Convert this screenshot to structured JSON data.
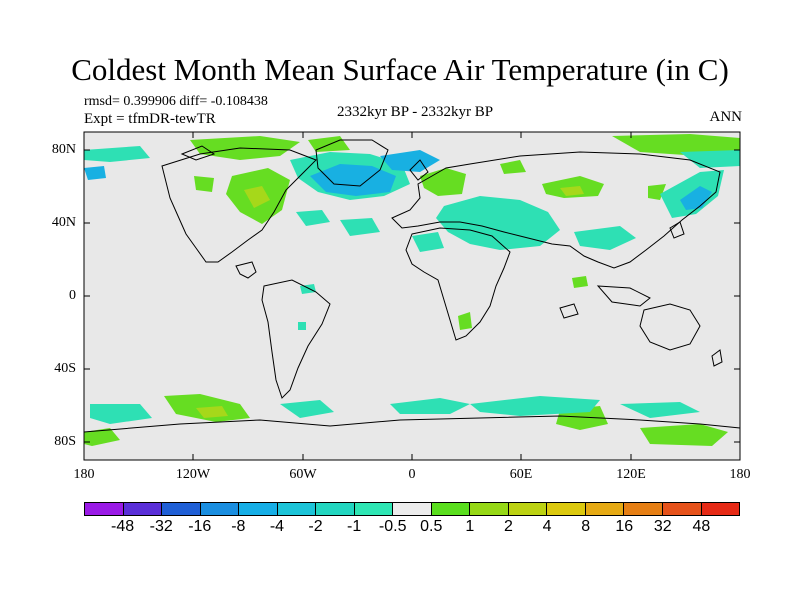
{
  "title": "Coldest Month Mean Surface Air Temperature (in C)",
  "stats": "rmsd= 0.399906 diff= -0.108438",
  "experiment": "Expt = tfmDR-tewTR",
  "period": "2332kyr BP - 2332kyr BP",
  "season": "ANN",
  "lat_labels": [
    "80N",
    "40N",
    "0",
    "40S",
    "80S"
  ],
  "lon_labels": [
    "180",
    "120W",
    "60W",
    "0",
    "60E",
    "120E",
    "180"
  ],
  "colorbar": {
    "colors": [
      "#9a1ae6",
      "#5a2fd8",
      "#1f5fd6",
      "#1a8ee0",
      "#16aee6",
      "#1cc4d8",
      "#22d6c0",
      "#2ee6b4",
      "#ececec",
      "#5ade1e",
      "#96d816",
      "#bcd212",
      "#dcc90f",
      "#e6aa14",
      "#e67f14",
      "#e6521a",
      "#e62a16"
    ],
    "labels": [
      "-48",
      "-32",
      "-16",
      "-8",
      "-4",
      "-2",
      "-1",
      "-0.5",
      "0.5",
      "1",
      "2",
      "4",
      "8",
      "16",
      "32",
      "48"
    ]
  }
}
